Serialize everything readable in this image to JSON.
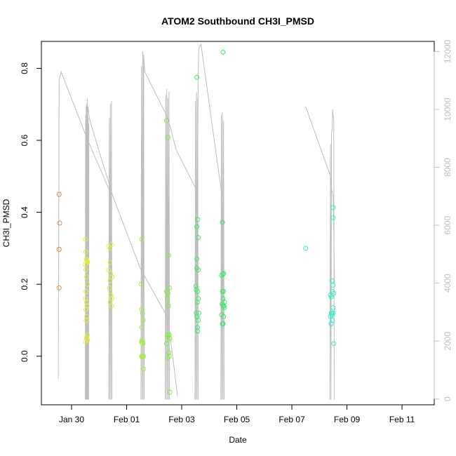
{
  "chart_data": {
    "type": "scatter",
    "title": "ATOM2 Southbound CH3I_PMSD",
    "xlabel": "Date",
    "ylabel": "CH3I_PMSD",
    "x_ticks": [
      "Jan 30",
      "Feb 01",
      "Feb 03",
      "Feb 05",
      "Feb 07",
      "Feb 09",
      "Feb 11"
    ],
    "y_ticks": [
      0.0,
      0.2,
      0.4,
      0.6,
      0.8
    ],
    "y_tick_labels": [
      "0.0",
      "0.2",
      "0.4",
      "0.6",
      "0.8"
    ],
    "y2_ticks": [
      0,
      2000,
      4000,
      6000,
      8000,
      10000,
      12000
    ],
    "y2_tick_labels": [
      "0",
      "2000",
      "4000",
      "6000",
      "8000",
      "10000",
      "12000"
    ],
    "xlim": [
      "Jan 28 10:00",
      "Feb 11 16:00"
    ],
    "ylim": [
      -0.135,
      0.875
    ],
    "y2lim": [
      -200,
      12350
    ],
    "x_domain_days": [
      -1.595,
      12.67
    ],
    "legend": "none",
    "grid": false,
    "colors": {
      "line": "#bebebe",
      "axis": "#000000",
      "right_axis": "#bebebe"
    },
    "scatter_groups": [
      {
        "color": "#e8883a",
        "x_days": [
          -0.95,
          -0.95,
          -0.93,
          -0.95
        ],
        "y": [
          0.45,
          0.297,
          0.37,
          0.19
        ]
      },
      {
        "color": "#e3ef3a",
        "x_days": [
          0.0,
          0.02,
          0.04,
          0.05,
          0.06,
          0.08,
          0.0,
          0.02,
          0.05,
          0.07,
          0.03,
          0.0,
          0.04,
          0.06,
          0.02,
          0.05,
          0.03,
          0.07,
          0.06,
          0.04,
          0.08,
          0.01
        ],
        "y": [
          0.325,
          0.29,
          0.27,
          0.268,
          0.265,
          0.262,
          0.255,
          0.24,
          0.22,
          0.2,
          0.18,
          0.16,
          0.15,
          0.14,
          0.13,
          0.11,
          0.1,
          0.06,
          0.055,
          0.05,
          0.045,
          0.04
        ]
      },
      {
        "color": "#dcf23a",
        "x_days": [
          0.85,
          0.9,
          0.95,
          0.9,
          0.85,
          0.92,
          0.97,
          0.9,
          0.88,
          0.93,
          0.96,
          0.9,
          0.95
        ],
        "y": [
          0.305,
          0.3,
          0.31,
          0.26,
          0.24,
          0.23,
          0.22,
          0.21,
          0.19,
          0.17,
          0.16,
          0.15,
          0.14
        ]
      },
      {
        "color": "#9ef03a",
        "x_days": [
          2.05,
          2.03,
          2.05,
          2.08,
          2.1,
          2.05,
          2.07,
          2.04,
          2.07,
          2.09,
          2.08,
          2.06,
          2.11,
          2.12,
          2.05
        ],
        "y": [
          0.325,
          0.2,
          0.13,
          0.12,
          0.1,
          0.08,
          0.045,
          0.04,
          0.04,
          0.035,
          0.0,
          -0.002,
          0.0,
          -0.035,
          0.0
        ]
      },
      {
        "color": "#7cf03a",
        "x_days": [
          2.95,
          3.0,
          3.02,
          2.95,
          3.0,
          3.05,
          2.98,
          3.02,
          2.98,
          3.0,
          3.05,
          3.07,
          2.95,
          3.03,
          3.05,
          3.0,
          3.07
        ],
        "y": [
          0.655,
          0.608,
          0.28,
          0.18,
          0.175,
          0.19,
          0.16,
          0.14,
          0.06,
          0.055,
          0.06,
          0.05,
          0.035,
          0.01,
          0.0,
          -0.005,
          -0.1
        ]
      },
      {
        "color": "#3bef5b",
        "x_days": [
          4.05,
          4.05,
          4.05,
          4.08,
          4.1,
          4.1,
          4.05,
          4.02,
          4.03,
          4.08,
          4.1,
          4.07,
          4.03,
          4.12,
          4.05,
          4.1,
          4.08,
          4.08
        ],
        "y": [
          0.775,
          0.27,
          0.36,
          0.38,
          0.33,
          0.24,
          0.245,
          0.195,
          0.185,
          0.18,
          0.16,
          0.15,
          0.12,
          0.12,
          0.11,
          0.1,
          0.08,
          0.07
        ]
      },
      {
        "color": "#32ed63",
        "x_days": [
          5.0,
          4.98,
          5.02,
          4.95,
          5.0,
          5.02,
          4.98,
          5.0,
          5.05,
          4.97,
          5.03,
          5.0,
          5.05,
          4.95,
          5.02,
          4.98,
          5.0
        ],
        "y": [
          0.845,
          0.372,
          0.23,
          0.225,
          0.228,
          0.18,
          0.18,
          0.16,
          0.15,
          0.145,
          0.14,
          0.14,
          0.135,
          0.115,
          0.11,
          0.09,
          0.09
        ]
      },
      {
        "color": "#3cf2b5",
        "x_days": [
          8.0
        ],
        "y": [
          0.3
        ]
      },
      {
        "color": "#35edc8",
        "x_days": [
          9.0,
          9.0,
          8.95,
          9.0,
          8.97,
          9.02,
          8.9,
          8.93,
          8.95,
          9.0,
          8.95,
          8.9,
          8.93,
          9.0,
          8.97,
          8.92,
          9.02
        ],
        "y": [
          0.413,
          0.385,
          0.21,
          0.197,
          0.18,
          0.175,
          0.17,
          0.165,
          0.12,
          0.135,
          0.115,
          0.11,
          0.12,
          0.12,
          0.1,
          0.09,
          0.035
        ]
      }
    ],
    "line_series": [
      {
        "name": "",
        "x_days": [
          -0.98,
          -0.95,
          -0.9,
          -0.88,
          0.06,
          0.88,
          0.9,
          0.95
        ],
        "y2": [
          700,
          11000,
          11200,
          11300,
          9000,
          7200,
          7150,
          6700
        ]
      },
      {
        "name": "",
        "x_days": [
          2.05,
          2.1,
          2.12,
          2.16,
          3.0,
          3.3,
          4.05
        ],
        "y2": [
          8200,
          8200,
          11900,
          11300,
          9700,
          8600,
          7200
        ]
      },
      {
        "name": "",
        "x_days": [
          4.05,
          4.1,
          4.12,
          4.2,
          4.92,
          4.95,
          5.0
        ],
        "y2": [
          4000,
          11300,
          12100,
          12250,
          7300,
          7200,
          7000
        ]
      },
      {
        "name": "",
        "x_days": [
          8.0,
          8.9,
          8.95,
          9.0,
          9.05
        ],
        "y2": [
          10100,
          7700,
          7200,
          7000,
          4000
        ]
      },
      {
        "name": "",
        "x_days": [
          0.0,
          0.05,
          0.07,
          0.1,
          0.12,
          0.15,
          0.2,
          1.0,
          2.0,
          3.0,
          3.35
        ],
        "y2": [
          6400,
          7800,
          9500,
          10100,
          9900,
          9700,
          9500,
          7000,
          4500,
          2800,
          100
        ]
      }
    ],
    "spike_series": [
      {
        "x_days": [
          0.0,
          0.01,
          0.02,
          0.03,
          0.04,
          0.05,
          0.06,
          0.07,
          0.08,
          0.09,
          0.1,
          0.11,
          0.12,
          0.13
        ],
        "y2": [
          -20,
          9800,
          -20,
          10100,
          -20,
          10200,
          -20,
          10400,
          -20,
          10100,
          -20,
          9700,
          -20,
          9500
        ]
      },
      {
        "x_days": [
          0.85,
          0.87,
          0.89,
          0.91,
          0.93,
          0.95,
          0.97
        ],
        "y2": [
          -20,
          9700,
          -20,
          10200,
          -20,
          10300,
          -20
        ]
      },
      {
        "x_days": [
          2.02,
          2.04,
          2.06,
          2.08,
          2.1,
          2.12,
          2.14
        ],
        "y2": [
          -20,
          11500,
          -20,
          12000,
          -20,
          11800,
          -20
        ]
      },
      {
        "x_days": [
          2.9,
          2.92,
          2.94,
          2.96,
          2.98,
          3.0,
          3.02,
          3.04,
          3.06
        ],
        "y2": [
          -20,
          10500,
          -20,
          10700,
          -20,
          10400,
          -20,
          10600,
          -20
        ]
      },
      {
        "x_days": [
          3.98,
          4.0,
          4.02,
          4.04,
          4.06,
          4.08,
          4.1
        ],
        "y2": [
          -20,
          10300,
          -20,
          10600,
          -20,
          10400,
          -20
        ]
      },
      {
        "x_days": [
          4.92,
          4.94,
          4.96,
          4.98,
          5.0,
          5.02,
          5.04
        ],
        "y2": [
          -20,
          9800,
          -20,
          9900,
          -20,
          9600,
          -20
        ]
      },
      {
        "x_days": [
          8.88,
          8.9,
          8.92,
          8.94,
          8.96,
          8.98,
          9.0,
          9.02,
          9.04
        ],
        "y2": [
          -20,
          8800,
          -20,
          9200,
          9300,
          10000,
          9800,
          9600,
          -20
        ]
      }
    ],
    "x_tick_days": [
      -0.5,
      1.5,
      3.5,
      5.5,
      7.5,
      9.5,
      11.5
    ]
  }
}
